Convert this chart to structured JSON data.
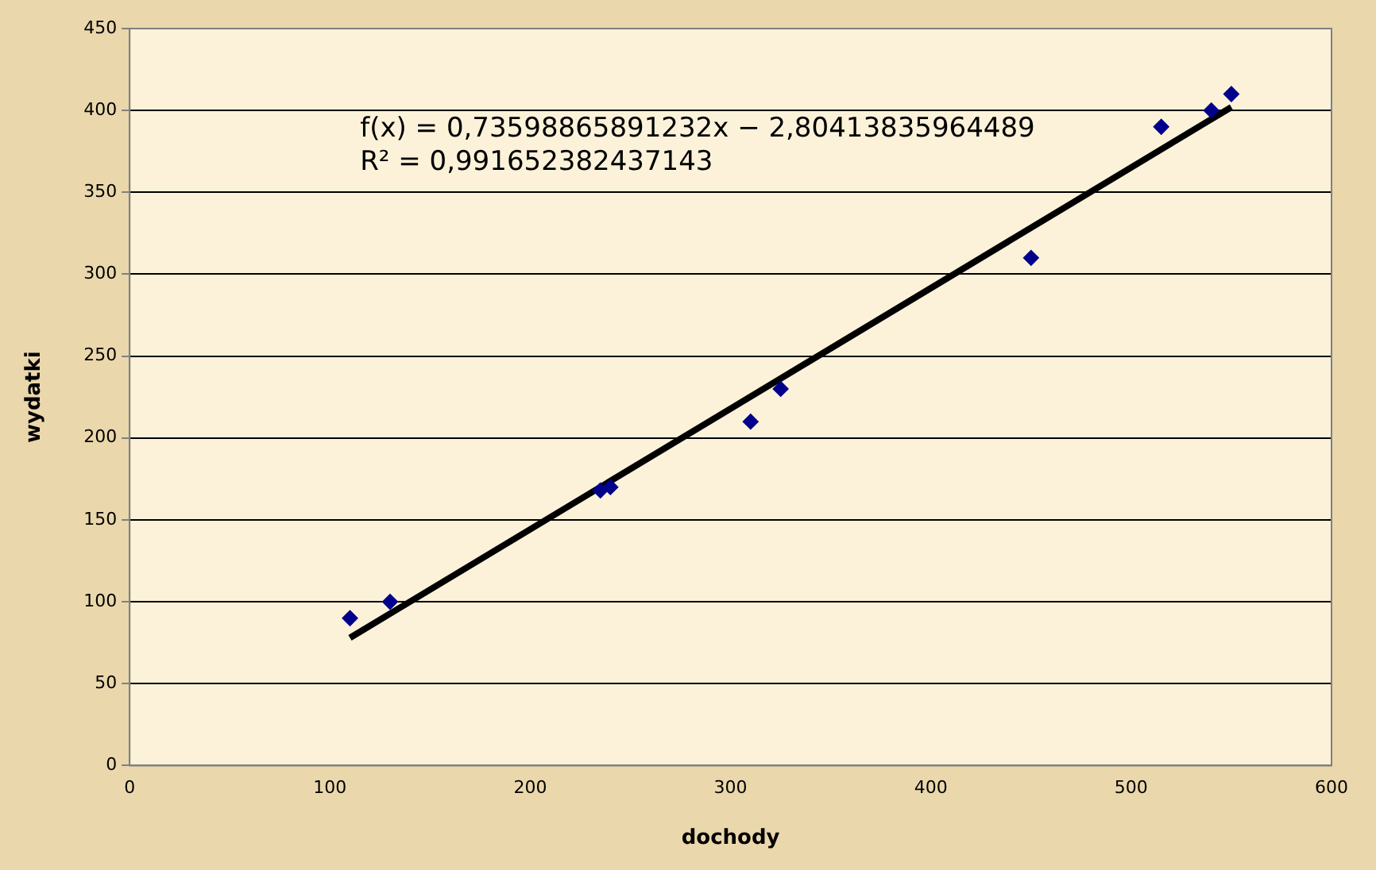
{
  "chart_data": {
    "type": "scatter",
    "xlabel": "dochody",
    "ylabel": "wydatki",
    "x": [
      110,
      130,
      235,
      240,
      310,
      325,
      450,
      515,
      540,
      550
    ],
    "series": [
      {
        "type": "scatter",
        "color": "#00008b",
        "marker": "diamond",
        "values": [
          90,
          100,
          168,
          170,
          210,
          230,
          310,
          390,
          400,
          410
        ]
      },
      {
        "type": "line",
        "color": "#000000",
        "marker": "none",
        "line_style": "solid",
        "x": [
          110,
          550
        ],
        "values": [
          78,
          402
        ]
      }
    ],
    "xlim": [
      0,
      600
    ],
    "xticks": [
      0,
      100,
      200,
      300,
      400,
      500,
      600
    ],
    "ylim": [
      0,
      450
    ],
    "yticks": [
      0,
      50,
      100,
      150,
      200,
      250,
      300,
      350,
      400,
      450
    ],
    "grid": "y",
    "legend": false,
    "annotations": [
      "f(x) = 0,73598865891232x − 2,80413835964489",
      "R² = 0,991652382437143"
    ]
  }
}
